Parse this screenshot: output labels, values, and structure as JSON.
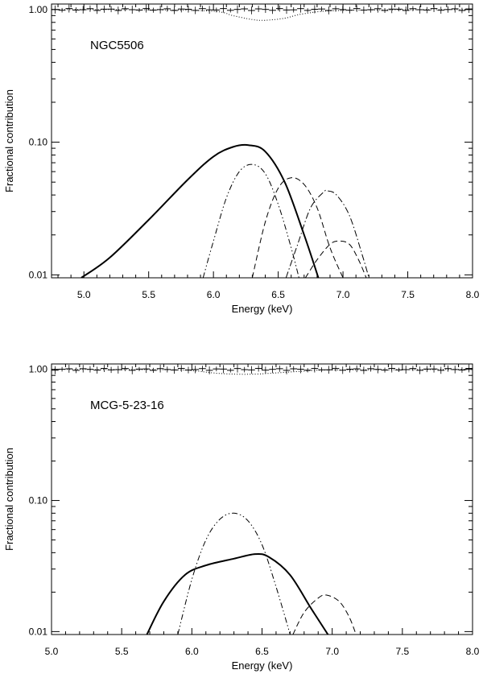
{
  "chart_data": [
    {
      "type": "line",
      "title": "NGC5506",
      "xlabel": "Energy (keV)",
      "ylabel": "Fractional contribution",
      "xlim": [
        4.75,
        8.0
      ],
      "ylim": [
        0.0095,
        1.1
      ],
      "yscale": "log",
      "grid": false,
      "xticks": [
        5.0,
        5.5,
        6.0,
        6.5,
        7.0,
        7.5,
        8.0
      ],
      "xtick_labels": [
        "5.0",
        "5.5",
        "6.0",
        "6.5",
        "7.0",
        "7.5",
        "8.0"
      ],
      "yticks": [
        0.01,
        0.1,
        1.0
      ],
      "ytick_labels": [
        "0.01",
        "0.10",
        "1.00"
      ],
      "series": [
        {
          "name": "total",
          "style": "solid-thick",
          "x": [
            4.98,
            5.2,
            5.5,
            5.8,
            6.0,
            6.15,
            6.27,
            6.4,
            6.55,
            6.7,
            6.81
          ],
          "y": [
            0.0095,
            0.0135,
            0.026,
            0.052,
            0.078,
            0.092,
            0.095,
            0.085,
            0.05,
            0.02,
            0.0095
          ]
        },
        {
          "name": "component-1",
          "style": "dash-dot-dot",
          "x": [
            5.92,
            6.0,
            6.1,
            6.2,
            6.3,
            6.4,
            6.5,
            6.6,
            6.66
          ],
          "y": [
            0.0095,
            0.018,
            0.038,
            0.06,
            0.068,
            0.058,
            0.034,
            0.016,
            0.0095
          ]
        },
        {
          "name": "component-2",
          "style": "dashed",
          "x": [
            6.3,
            6.4,
            6.5,
            6.6,
            6.7,
            6.8,
            6.9,
            7.0
          ],
          "y": [
            0.0095,
            0.025,
            0.045,
            0.054,
            0.048,
            0.032,
            0.016,
            0.0095
          ]
        },
        {
          "name": "component-3",
          "style": "dash-dot",
          "x": [
            6.56,
            6.65,
            6.75,
            6.85,
            6.88,
            6.95,
            7.05,
            7.15,
            7.2
          ],
          "y": [
            0.0095,
            0.017,
            0.032,
            0.042,
            0.043,
            0.04,
            0.028,
            0.014,
            0.0095
          ]
        },
        {
          "name": "component-4",
          "style": "dashed",
          "x": [
            6.71,
            6.8,
            6.9,
            6.97,
            7.05,
            7.12,
            7.18
          ],
          "y": [
            0.0095,
            0.013,
            0.017,
            0.018,
            0.017,
            0.013,
            0.0095
          ]
        },
        {
          "name": "dotted-reference",
          "style": "dotted",
          "x": [
            4.75,
            5.5,
            6.0,
            6.15,
            6.3,
            6.4,
            6.55,
            6.7,
            7.0,
            8.0
          ],
          "y": [
            1.0,
            0.995,
            0.97,
            0.9,
            0.84,
            0.83,
            0.86,
            0.93,
            0.985,
            1.0
          ]
        },
        {
          "name": "data-ratio",
          "style": "step-errorbars",
          "y_center": 1.0
        }
      ]
    },
    {
      "type": "line",
      "title": "MCG-5-23-16",
      "xlabel": "Energy (keV)",
      "ylabel": "Fractional contribution",
      "xlim": [
        5.0,
        8.0
      ],
      "ylim": [
        0.0095,
        1.1
      ],
      "yscale": "log",
      "grid": false,
      "xticks": [
        5.0,
        5.5,
        6.0,
        6.5,
        7.0,
        7.5,
        8.0
      ],
      "xtick_labels": [
        "5.0",
        "5.5",
        "6.0",
        "6.5",
        "7.0",
        "7.5",
        "8.0"
      ],
      "yticks": [
        0.01,
        0.1,
        1.0
      ],
      "ytick_labels": [
        "0.01",
        "0.10",
        "1.00"
      ],
      "series": [
        {
          "name": "total",
          "style": "solid-thick",
          "x": [
            5.68,
            5.8,
            5.95,
            6.1,
            6.3,
            6.45,
            6.55,
            6.7,
            6.85,
            6.97
          ],
          "y": [
            0.0095,
            0.017,
            0.027,
            0.032,
            0.036,
            0.039,
            0.037,
            0.027,
            0.015,
            0.0095
          ]
        },
        {
          "name": "component-1",
          "style": "dash-dot-dot",
          "x": [
            5.9,
            6.0,
            6.1,
            6.2,
            6.3,
            6.4,
            6.5,
            6.6,
            6.7
          ],
          "y": [
            0.0095,
            0.025,
            0.05,
            0.072,
            0.08,
            0.07,
            0.046,
            0.022,
            0.0095
          ]
        },
        {
          "name": "component-2",
          "style": "dashed",
          "x": [
            6.72,
            6.8,
            6.9,
            6.96,
            7.05,
            7.12,
            7.17
          ],
          "y": [
            0.0095,
            0.014,
            0.018,
            0.019,
            0.017,
            0.013,
            0.0095
          ]
        },
        {
          "name": "dotted-reference",
          "style": "dotted",
          "x": [
            5.0,
            5.8,
            6.0,
            6.15,
            6.3,
            6.45,
            6.6,
            6.8,
            7.0,
            8.0
          ],
          "y": [
            1.0,
            0.995,
            0.98,
            0.94,
            0.92,
            0.92,
            0.94,
            0.97,
            0.99,
            1.0
          ]
        },
        {
          "name": "data-ratio",
          "style": "step-errorbars",
          "y_center": 1.0
        }
      ]
    }
  ]
}
